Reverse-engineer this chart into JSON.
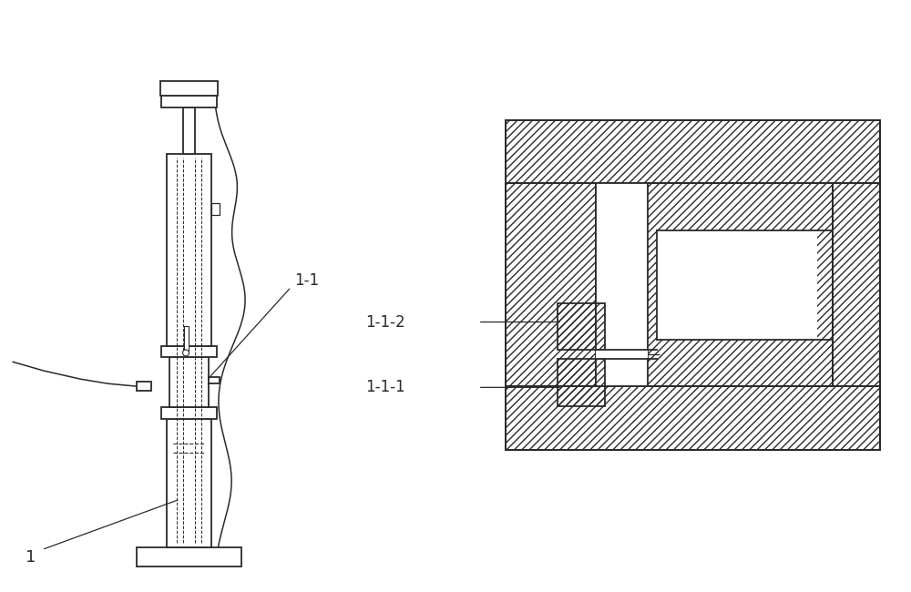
{
  "bg_color": "#ffffff",
  "line_color": "#2a2a2a",
  "text_color": "#2a2a2a",
  "fig_width": 10.0,
  "fig_height": 6.5,
  "dpi": 100
}
